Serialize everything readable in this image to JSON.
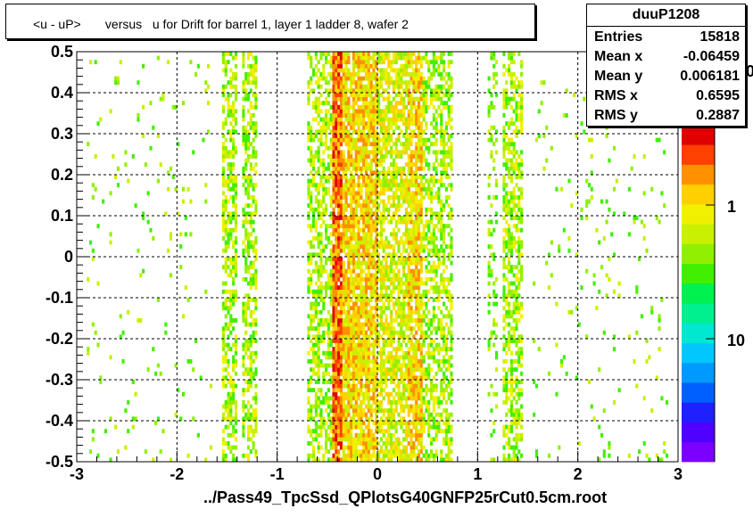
{
  "title": "<u - uP>       versus   u for Drift for barrel 1, layer 1 ladder 8, wafer 2",
  "footer": "../Pass49_TpcSsd_QPlotsG40GNFP25rCut0.5cm.root",
  "stats": {
    "name": "duuP1208",
    "rows": [
      {
        "label": "Entries",
        "value": "15818"
      },
      {
        "label": "Mean x",
        "value": "-0.06459"
      },
      {
        "label": "Mean y",
        "value": "0.006181"
      },
      {
        "label": "RMS x",
        "value": "0.6595"
      },
      {
        "label": "RMS y",
        "value": "0.2887"
      }
    ]
  },
  "palette_labels": [
    "1",
    "10"
  ],
  "palette_label_partial": "0",
  "chart_data": {
    "type": "heatmap",
    "xlim": [
      -3,
      3
    ],
    "ylim": [
      -0.5,
      0.5
    ],
    "x_ticks": [
      "-3",
      "-2",
      "-1",
      "0",
      "1",
      "2",
      "3"
    ],
    "y_ticks": [
      "-0.5",
      "-0.4",
      "-0.3",
      "-0.2",
      "-0.1",
      "0",
      "0.1",
      "0.2",
      "0.3",
      "0.4",
      "0.5"
    ],
    "grid": true,
    "colorscale": "log",
    "x_bands": [
      {
        "x": [
          -2.9,
          -1.65
        ],
        "level": "sparse"
      },
      {
        "x": [
          -1.55,
          -1.4
        ],
        "level": "medium"
      },
      {
        "x": [
          -1.35,
          -1.2
        ],
        "level": "medium"
      },
      {
        "x": [
          -0.7,
          -0.45
        ],
        "level": "medium"
      },
      {
        "x": [
          -0.45,
          -0.35
        ],
        "level": "peak"
      },
      {
        "x": [
          -0.35,
          0.0
        ],
        "level": "high"
      },
      {
        "x": [
          0.0,
          0.3
        ],
        "level": "medium-high"
      },
      {
        "x": [
          0.3,
          0.45
        ],
        "level": "high"
      },
      {
        "x": [
          0.45,
          0.75
        ],
        "level": "medium"
      },
      {
        "x": [
          1.1,
          1.2
        ],
        "level": "low"
      },
      {
        "x": [
          1.25,
          1.45
        ],
        "level": "medium"
      },
      {
        "x": [
          1.55,
          2.9
        ],
        "level": "sparse"
      }
    ],
    "palette": [
      "#7a00ff",
      "#5000ff",
      "#2020ff",
      "#0060ff",
      "#0099ff",
      "#00c8ff",
      "#00e8d0",
      "#00f090",
      "#00f050",
      "#40f000",
      "#90f000",
      "#c8f000",
      "#f0f000",
      "#ffd000",
      "#ff9000",
      "#ff4000",
      "#e00000"
    ]
  }
}
